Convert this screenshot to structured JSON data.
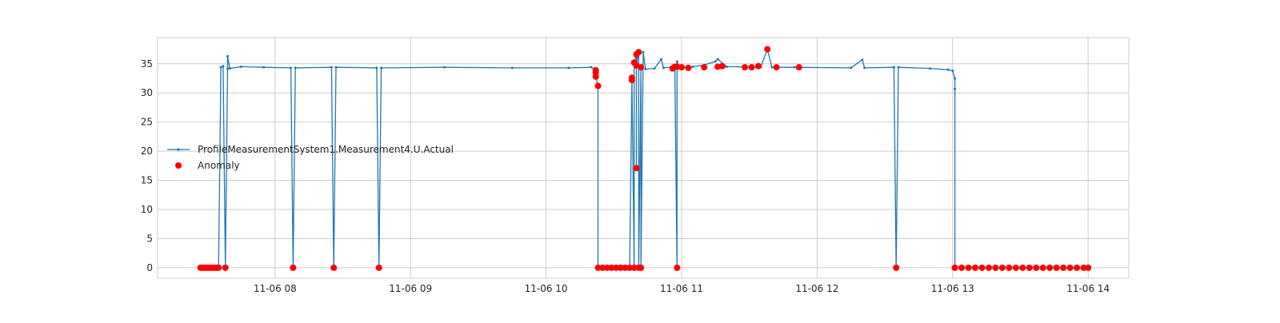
{
  "chart_data": {
    "type": "line",
    "title": "",
    "xlabel": "",
    "ylabel": "",
    "x_domain": [
      "11-06 07:08",
      "11-06 14:18"
    ],
    "ylim": [
      -1.8,
      39.5
    ],
    "x_ticks": [
      {
        "t": "11-06 08:00",
        "label": "11-06 08"
      },
      {
        "t": "11-06 09:00",
        "label": "11-06 09"
      },
      {
        "t": "11-06 10:00",
        "label": "11-06 10"
      },
      {
        "t": "11-06 11:00",
        "label": "11-06 11"
      },
      {
        "t": "11-06 12:00",
        "label": "11-06 12"
      },
      {
        "t": "11-06 13:00",
        "label": "11-06 13"
      },
      {
        "t": "11-06 14:00",
        "label": "11-06 14"
      }
    ],
    "y_ticks": [
      0,
      5,
      10,
      15,
      20,
      25,
      30,
      35
    ],
    "grid": true,
    "legend_position": "center-left",
    "colors": {
      "series": "#1f77b4",
      "anomaly": "#ff0000",
      "grid": "#cccccc",
      "frame": "#cccccc"
    },
    "series": [
      {
        "name": "ProfileMeasurementSystem1.Measurement4.U.Actual",
        "type": "line",
        "marker": "dot",
        "points": [
          [
            "11-06 07:27",
            0
          ],
          [
            "11-06 07:29",
            0
          ],
          [
            "11-06 07:31",
            0
          ],
          [
            "11-06 07:33",
            0
          ],
          [
            "11-06 07:35",
            0
          ],
          [
            "11-06 07:36",
            34.4
          ],
          [
            "11-06 07:37",
            34.6
          ],
          [
            "11-06 07:38",
            0
          ],
          [
            "11-06 07:39",
            34.2
          ],
          [
            "11-06 07:39",
            36.3
          ],
          [
            "11-06 07:40",
            34.2
          ],
          [
            "11-06 07:45",
            34.5
          ],
          [
            "11-06 07:55",
            34.4
          ],
          [
            "11-06 08:07",
            34.3
          ],
          [
            "11-06 08:08",
            0
          ],
          [
            "11-06 08:09",
            34.3
          ],
          [
            "11-06 08:25",
            34.4
          ],
          [
            "11-06 08:26",
            0
          ],
          [
            "11-06 08:27",
            34.4
          ],
          [
            "11-06 08:45",
            34.3
          ],
          [
            "11-06 08:46",
            0
          ],
          [
            "11-06 08:47",
            34.3
          ],
          [
            "11-06 09:15",
            34.4
          ],
          [
            "11-06 09:45",
            34.3
          ],
          [
            "11-06 10:10",
            34.3
          ],
          [
            "11-06 10:20",
            34.4
          ],
          [
            "11-06 10:22",
            33.9
          ],
          [
            "11-06 10:22",
            33.5
          ],
          [
            "11-06 10:22",
            32.8
          ],
          [
            "11-06 10:23",
            31.2
          ],
          [
            "11-06 10:23",
            0
          ],
          [
            "11-06 10:29",
            0
          ],
          [
            "11-06 10:36",
            0
          ],
          [
            "11-06 10:37",
            0
          ],
          [
            "11-06 10:38",
            32.2
          ],
          [
            "11-06 10:38",
            32.6
          ],
          [
            "11-06 10:39",
            0
          ],
          [
            "11-06 10:39",
            35.2
          ],
          [
            "11-06 10:40",
            36.6
          ],
          [
            "11-06 10:40",
            17.1
          ],
          [
            "11-06 10:40",
            34.7
          ],
          [
            "11-06 10:41",
            37.0
          ],
          [
            "11-06 10:41",
            0
          ],
          [
            "11-06 10:42",
            34.4
          ],
          [
            "11-06 10:42",
            0
          ],
          [
            "11-06 10:43",
            37.0
          ],
          [
            "11-06 10:44",
            34.1
          ],
          [
            "11-06 10:48",
            34.2
          ],
          [
            "11-06 10:51",
            35.8
          ],
          [
            "11-06 10:52",
            34.3
          ],
          [
            "11-06 10:57",
            34.5
          ],
          [
            "11-06 10:58",
            0
          ],
          [
            "11-06 10:58",
            35.4
          ],
          [
            "11-06 10:59",
            34.4
          ],
          [
            "11-06 11:05",
            34.5
          ],
          [
            "11-06 11:10",
            34.8
          ],
          [
            "11-06 11:15",
            35.4
          ],
          [
            "11-06 11:16",
            35.8
          ],
          [
            "11-06 11:20",
            34.5
          ],
          [
            "11-06 11:35",
            34.4
          ],
          [
            "11-06 11:38",
            37.5
          ],
          [
            "11-06 11:40",
            34.4
          ],
          [
            "11-06 11:50",
            34.4
          ],
          [
            "11-06 12:15",
            34.3
          ],
          [
            "11-06 12:20",
            35.7
          ],
          [
            "11-06 12:21",
            34.3
          ],
          [
            "11-06 12:34",
            34.4
          ],
          [
            "11-06 12:35",
            0
          ],
          [
            "11-06 12:36",
            34.4
          ],
          [
            "11-06 12:50",
            34.2
          ],
          [
            "11-06 12:58",
            34.0
          ],
          [
            "11-06 13:00",
            33.8
          ],
          [
            "11-06 13:01",
            32.5
          ],
          [
            "11-06 13:01",
            30.7
          ],
          [
            "11-06 13:01",
            0
          ],
          [
            "11-06 13:30",
            0
          ],
          [
            "11-06 14:00",
            0
          ]
        ]
      },
      {
        "name": "Anomaly",
        "type": "scatter",
        "marker": "circle",
        "points": [
          [
            "11-06 07:27",
            0
          ],
          [
            "11-06 07:28",
            0
          ],
          [
            "11-06 07:29",
            0
          ],
          [
            "11-06 07:30",
            0
          ],
          [
            "11-06 07:31",
            0
          ],
          [
            "11-06 07:32",
            0
          ],
          [
            "11-06 07:33",
            0
          ],
          [
            "11-06 07:34",
            0
          ],
          [
            "11-06 07:35",
            0
          ],
          [
            "11-06 07:38",
            0
          ],
          [
            "11-06 08:08",
            0
          ],
          [
            "11-06 08:26",
            0
          ],
          [
            "11-06 08:46",
            0
          ],
          [
            "11-06 10:22",
            33.9
          ],
          [
            "11-06 10:22",
            33.5
          ],
          [
            "11-06 10:22",
            32.8
          ],
          [
            "11-06 10:23",
            31.2
          ],
          [
            "11-06 10:23",
            0
          ],
          [
            "11-06 10:25",
            0
          ],
          [
            "11-06 10:27",
            0
          ],
          [
            "11-06 10:29",
            0
          ],
          [
            "11-06 10:31",
            0
          ],
          [
            "11-06 10:33",
            0
          ],
          [
            "11-06 10:35",
            0
          ],
          [
            "11-06 10:37",
            0
          ],
          [
            "11-06 10:39",
            0
          ],
          [
            "11-06 10:41",
            0
          ],
          [
            "11-06 10:42",
            0
          ],
          [
            "11-06 10:38",
            32.2
          ],
          [
            "11-06 10:38",
            32.6
          ],
          [
            "11-06 10:39",
            35.2
          ],
          [
            "11-06 10:40",
            36.6
          ],
          [
            "11-06 10:40",
            17.1
          ],
          [
            "11-06 10:40",
            34.7
          ],
          [
            "11-06 10:41",
            37.0
          ],
          [
            "11-06 10:42",
            34.4
          ],
          [
            "11-06 10:56",
            34.2
          ],
          [
            "11-06 10:57",
            34.5
          ],
          [
            "11-06 10:58",
            34.5
          ],
          [
            "11-06 10:58",
            0
          ],
          [
            "11-06 11:00",
            34.4
          ],
          [
            "11-06 11:03",
            34.3
          ],
          [
            "11-06 11:10",
            34.4
          ],
          [
            "11-06 11:16",
            34.5
          ],
          [
            "11-06 11:18",
            34.6
          ],
          [
            "11-06 11:28",
            34.4
          ],
          [
            "11-06 11:31",
            34.4
          ],
          [
            "11-06 11:34",
            34.6
          ],
          [
            "11-06 11:38",
            37.5
          ],
          [
            "11-06 11:42",
            34.4
          ],
          [
            "11-06 11:52",
            34.4
          ],
          [
            "11-06 12:35",
            0
          ],
          [
            "11-06 13:01",
            0
          ],
          [
            "11-06 13:04",
            0
          ],
          [
            "11-06 13:07",
            0
          ],
          [
            "11-06 13:10",
            0
          ],
          [
            "11-06 13:13",
            0
          ],
          [
            "11-06 13:16",
            0
          ],
          [
            "11-06 13:19",
            0
          ],
          [
            "11-06 13:22",
            0
          ],
          [
            "11-06 13:25",
            0
          ],
          [
            "11-06 13:28",
            0
          ],
          [
            "11-06 13:31",
            0
          ],
          [
            "11-06 13:34",
            0
          ],
          [
            "11-06 13:37",
            0
          ],
          [
            "11-06 13:40",
            0
          ],
          [
            "11-06 13:43",
            0
          ],
          [
            "11-06 13:46",
            0
          ],
          [
            "11-06 13:49",
            0
          ],
          [
            "11-06 13:52",
            0
          ],
          [
            "11-06 13:55",
            0
          ],
          [
            "11-06 13:58",
            0
          ],
          [
            "11-06 14:00",
            0
          ]
        ]
      }
    ]
  }
}
